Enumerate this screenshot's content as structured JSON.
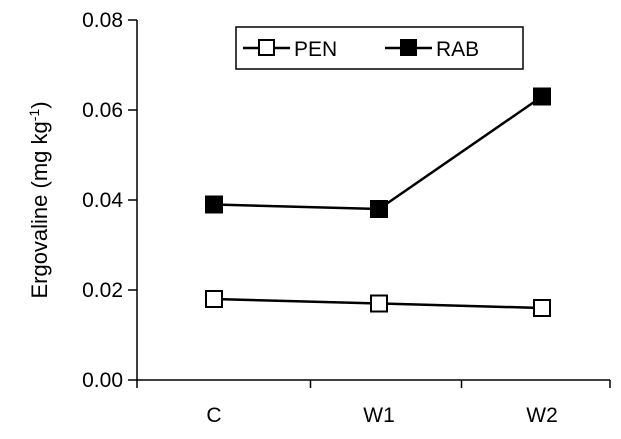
{
  "chart_data": {
    "type": "line",
    "ylabel_main": "Ergovaline (mg kg",
    "ylabel_sup": "-1",
    "ylabel_close": ")",
    "categories": [
      "C",
      "W1",
      "W2"
    ],
    "ylim": [
      0,
      0.08
    ],
    "yticks": [
      "0.00",
      "0.02",
      "0.04",
      "0.06",
      "0.08"
    ],
    "ytick_values": [
      0,
      0.02,
      0.04,
      0.06,
      0.08
    ],
    "legend_position": "top-center",
    "series": [
      {
        "name": "PEN",
        "marker": "open-square",
        "values": [
          0.018,
          0.017,
          0.016
        ],
        "errors": [
          0.0008,
          0.0008,
          0.0008
        ]
      },
      {
        "name": "RAB",
        "marker": "filled-square",
        "values": [
          0.039,
          0.038,
          0.063
        ],
        "errors": [
          0.0008,
          0.0008,
          0.0018
        ]
      }
    ],
    "colors": {
      "line": "#000000",
      "background": "#ffffff"
    }
  }
}
